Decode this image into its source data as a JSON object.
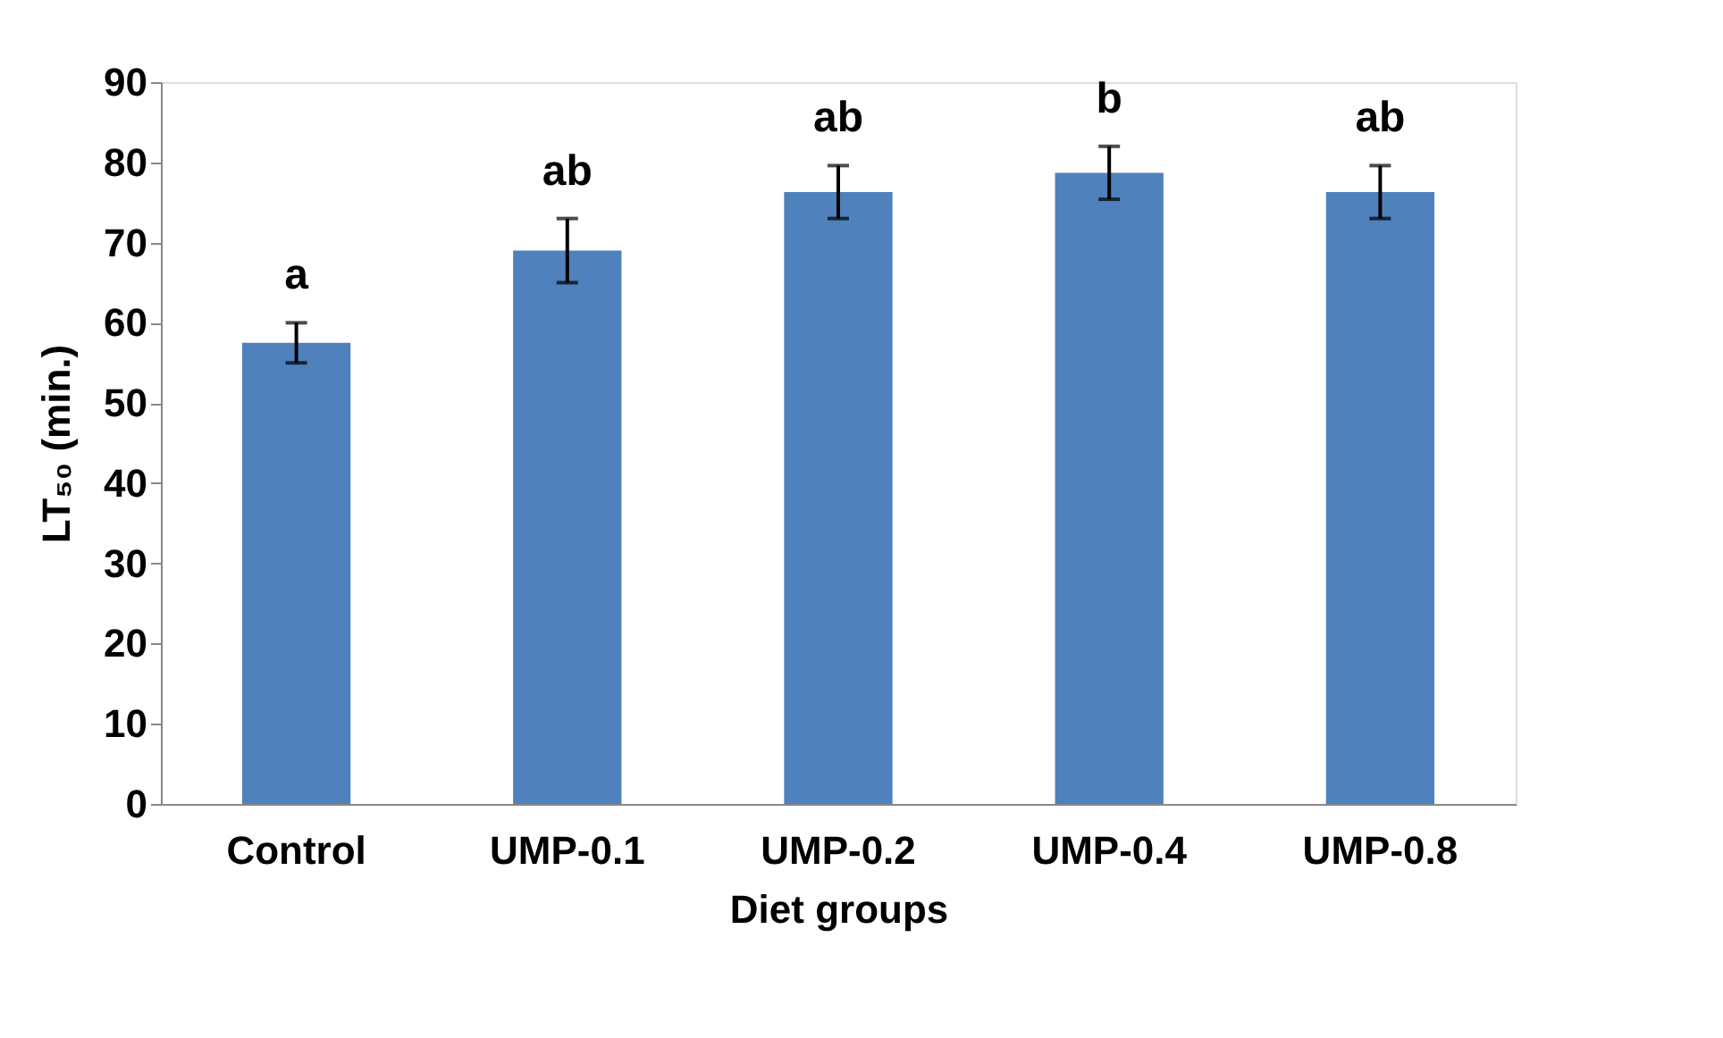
{
  "chart_data": {
    "type": "bar",
    "xlabel": "Diet groups",
    "ylabel": "LT₅₀ (min.)",
    "categories": [
      "Control",
      "UMP-0.1",
      "UMP-0.2",
      "UMP-0.4",
      "UMP-0.8"
    ],
    "values": [
      57.5,
      69,
      76.3,
      78.7,
      76.3
    ],
    "errors": [
      2.5,
      4,
      3.3,
      3.3,
      3.3
    ],
    "color": "#4f81bd",
    "ylim": [
      0,
      90
    ],
    "yticks": [
      0,
      10,
      20,
      30,
      40,
      50,
      60,
      70,
      80,
      90
    ],
    "grid": false,
    "annotations": [
      "a",
      "ab",
      "ab",
      "b",
      "ab"
    ]
  }
}
